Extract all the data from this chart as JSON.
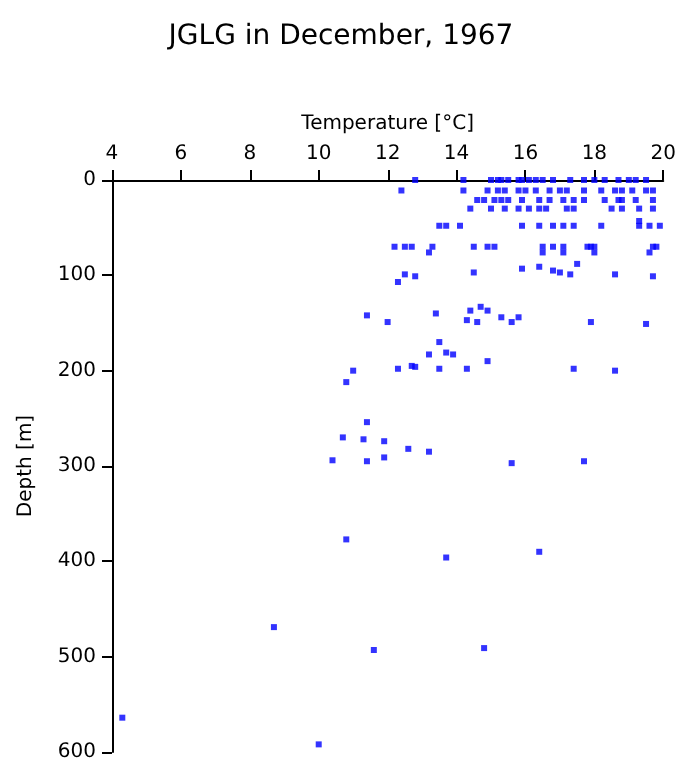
{
  "chart_data": {
    "type": "scatter",
    "title": "JGLG in December, 1967",
    "xlabel": "Temperature [°C]",
    "ylabel": "Depth [m]",
    "xlim": [
      4,
      20
    ],
    "xticks": [
      4,
      6,
      8,
      10,
      12,
      14,
      16,
      18,
      20
    ],
    "ylim": [
      600,
      0
    ],
    "yticks": [
      0,
      100,
      200,
      300,
      400,
      500,
      600
    ],
    "grid": false,
    "marker": "square",
    "series": [
      {
        "color": "#0000ff",
        "x": [
          12.8,
          14.2,
          15.0,
          15.2,
          15.3,
          15.5,
          15.8,
          15.9,
          16.1,
          16.3,
          16.5,
          16.8,
          17.3,
          17.7,
          18.0,
          18.3,
          18.7,
          19.0,
          19.2,
          19.5,
          12.4,
          14.2,
          14.9,
          15.2,
          15.4,
          15.8,
          16.0,
          16.3,
          16.7,
          17.0,
          17.2,
          17.7,
          18.2,
          18.6,
          18.8,
          19.1,
          19.5,
          19.7,
          14.6,
          14.8,
          15.1,
          15.3,
          15.5,
          15.9,
          16.4,
          16.7,
          17.1,
          17.4,
          17.7,
          18.3,
          18.7,
          18.8,
          19.2,
          19.7,
          14.4,
          15.0,
          15.4,
          15.8,
          16.1,
          16.4,
          16.6,
          17.2,
          17.4,
          18.5,
          18.8,
          19.3,
          19.7,
          19.3,
          13.5,
          13.7,
          14.1,
          15.9,
          16.4,
          16.8,
          17.1,
          17.4,
          18.2,
          19.3,
          19.6,
          19.9,
          12.2,
          12.5,
          12.7,
          13.3,
          14.5,
          14.9,
          15.1,
          16.5,
          16.8,
          17.1,
          17.8,
          17.9,
          18.0,
          19.7,
          19.8,
          13.2,
          16.5,
          17.1,
          18.0,
          19.6,
          12.5,
          12.8,
          14.5,
          15.9,
          16.4,
          16.8,
          17.0,
          17.3,
          17.5,
          18.6,
          19.7,
          12.3,
          11.4,
          12.0,
          13.4,
          14.4,
          14.7,
          14.9,
          14.3,
          14.6,
          15.3,
          15.6,
          15.8,
          17.9,
          19.5,
          13.5,
          13.2,
          13.7,
          13.9,
          14.9,
          12.3,
          12.7,
          12.8,
          13.5,
          14.3,
          17.4,
          18.6,
          11.0,
          10.8,
          11.4,
          10.7,
          11.3,
          11.9,
          12.6,
          13.2,
          10.4,
          11.4,
          11.9,
          15.6,
          17.7,
          10.8,
          13.7,
          16.4,
          8.7,
          4.3,
          10.0,
          11.6,
          14.8
        ],
        "values": [
          0,
          0,
          0,
          0,
          0,
          0,
          0,
          0,
          0,
          0,
          0,
          0,
          0,
          0,
          0,
          0,
          0,
          0,
          0,
          0,
          11,
          11,
          11,
          11,
          11,
          11,
          11,
          11,
          11,
          11,
          11,
          11,
          11,
          11,
          11,
          11,
          11,
          11,
          21,
          21,
          21,
          21,
          21,
          21,
          21,
          21,
          21,
          21,
          21,
          21,
          21,
          21,
          21,
          21,
          30,
          30,
          30,
          30,
          30,
          30,
          30,
          30,
          30,
          30,
          30,
          30,
          30,
          43,
          48,
          48,
          48,
          48,
          48,
          48,
          48,
          48,
          48,
          48,
          48,
          48,
          70,
          70,
          70,
          70,
          70,
          70,
          70,
          70,
          70,
          70,
          70,
          70,
          70,
          70,
          70,
          76,
          76,
          76,
          76,
          76,
          99,
          101,
          97,
          93,
          91,
          95,
          97,
          99,
          88,
          99,
          101,
          107,
          142,
          149,
          140,
          137,
          133,
          137,
          147,
          149,
          144,
          149,
          144,
          149,
          151,
          170,
          183,
          181,
          183,
          190,
          198,
          195,
          196,
          198,
          198,
          198,
          200,
          200,
          212,
          254,
          270,
          272,
          274,
          282,
          285,
          294,
          295,
          291,
          297,
          295,
          377,
          396,
          390,
          469,
          564,
          592,
          493,
          491
        ]
      }
    ]
  }
}
